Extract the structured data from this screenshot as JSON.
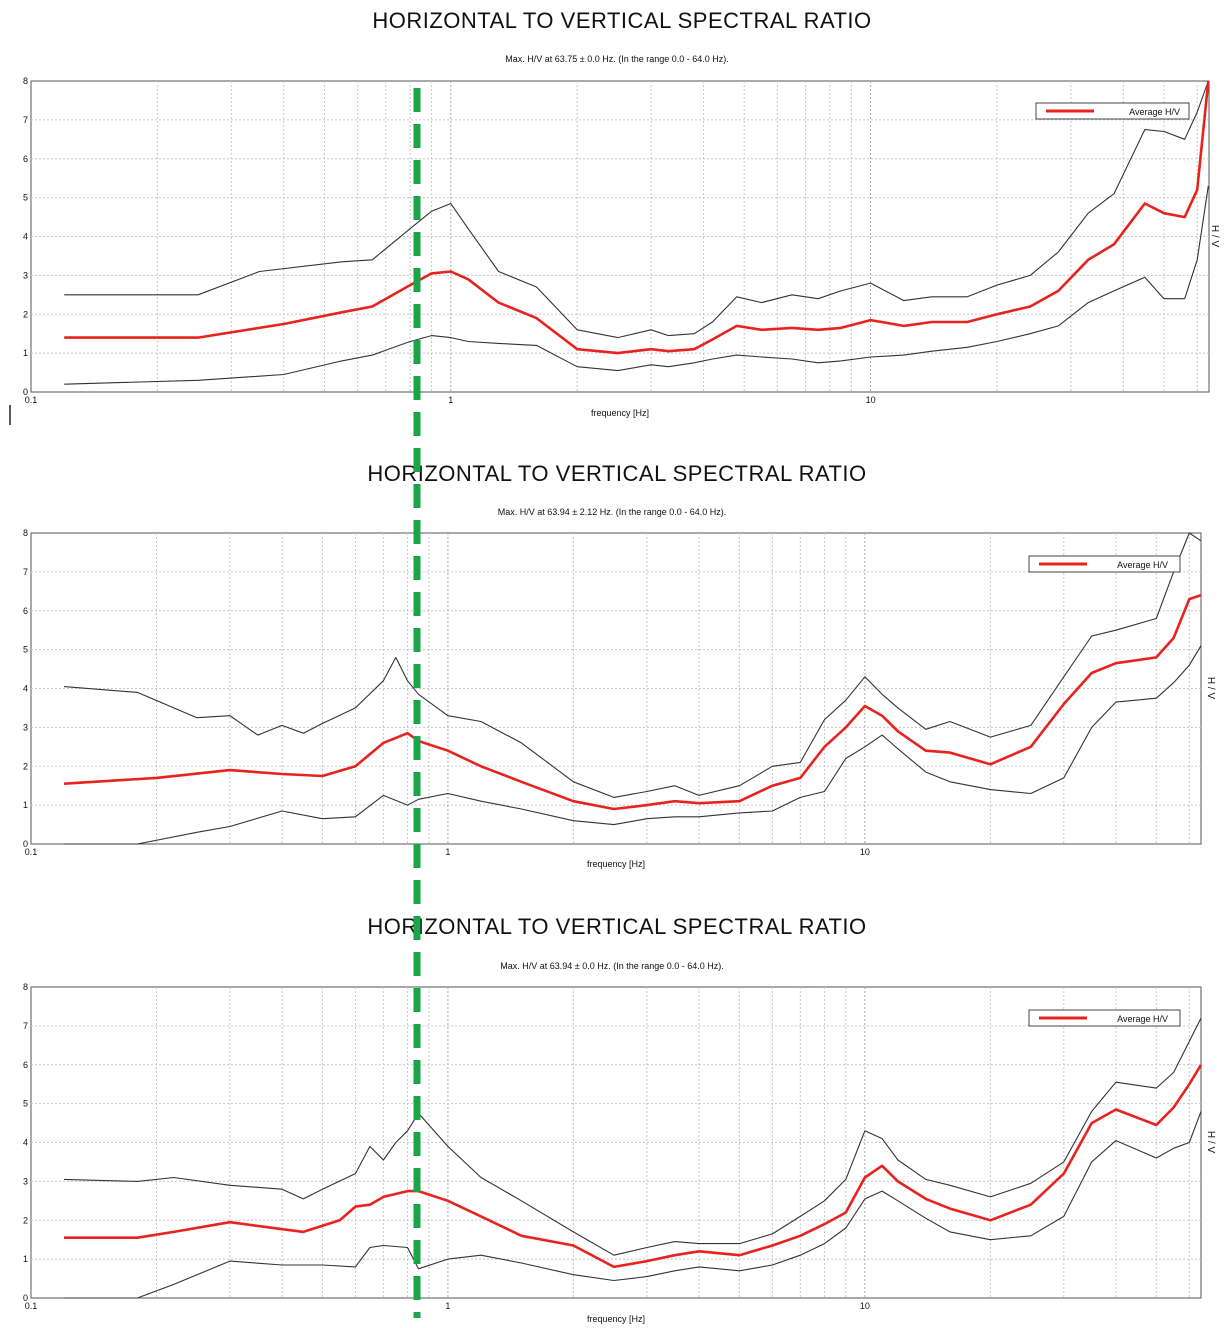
{
  "chart_data": [
    {
      "type": "line",
      "title": "HORIZONTAL TO VERTICAL SPECTRAL RATIO",
      "subtitle": "Max. H/V at 63.75 ± 0.0 Hz. (In the range 0.0 - 64.0 Hz).",
      "xlabel": "frequency [Hz]",
      "ylabel": "H / V",
      "xscale": "log",
      "xlim": [
        0.1,
        64
      ],
      "ylim": [
        0,
        8
      ],
      "xticks": [
        "0.1",
        "1",
        "10"
      ],
      "yticks": [
        "0",
        "1",
        "2",
        "3",
        "4",
        "5",
        "6",
        "7",
        "8"
      ],
      "grid": true,
      "legend": {
        "position": "top-right",
        "entries": [
          "Average H/V"
        ]
      },
      "series": [
        {
          "name": "Average H/V",
          "color": "#e8231e",
          "x": [
            0.12,
            0.25,
            0.4,
            0.55,
            0.65,
            0.8,
            0.9,
            1.0,
            1.1,
            1.3,
            1.6,
            2.0,
            2.5,
            3.0,
            3.3,
            3.8,
            4.2,
            4.8,
            5.5,
            6.5,
            7.5,
            8.5,
            10,
            12,
            14,
            17,
            20,
            24,
            28,
            33,
            38,
            45,
            50,
            56,
            60,
            63.75
          ],
          "y": [
            1.4,
            1.4,
            1.75,
            2.05,
            2.2,
            2.75,
            3.05,
            3.1,
            2.9,
            2.3,
            1.9,
            1.1,
            1.0,
            1.1,
            1.05,
            1.1,
            1.35,
            1.7,
            1.6,
            1.65,
            1.6,
            1.65,
            1.85,
            1.7,
            1.8,
            1.8,
            2.0,
            2.2,
            2.6,
            3.4,
            3.8,
            4.85,
            4.6,
            4.5,
            5.2,
            8.0
          ]
        },
        {
          "name": "",
          "color": "#333333",
          "x": [
            0.12,
            0.25,
            0.35,
            0.55,
            0.65,
            0.8,
            0.9,
            1.0,
            1.1,
            1.3,
            1.6,
            2.0,
            2.5,
            3.0,
            3.3,
            3.8,
            4.2,
            4.8,
            5.5,
            6.5,
            7.5,
            8.5,
            10,
            12,
            14,
            17,
            20,
            24,
            28,
            33,
            38,
            45,
            50,
            56,
            60,
            63.75
          ],
          "y": [
            2.5,
            2.5,
            3.1,
            3.35,
            3.4,
            4.2,
            4.65,
            4.85,
            4.2,
            3.1,
            2.7,
            1.6,
            1.4,
            1.6,
            1.45,
            1.5,
            1.8,
            2.45,
            2.3,
            2.5,
            2.4,
            2.6,
            2.8,
            2.35,
            2.45,
            2.45,
            2.75,
            3.0,
            3.6,
            4.6,
            5.1,
            6.75,
            6.7,
            6.5,
            7.2,
            8.0
          ]
        },
        {
          "name": "",
          "color": "#333333",
          "x": [
            0.12,
            0.25,
            0.4,
            0.55,
            0.65,
            0.8,
            0.9,
            1.0,
            1.1,
            1.3,
            1.6,
            2.0,
            2.5,
            3.0,
            3.3,
            3.8,
            4.2,
            4.8,
            5.5,
            6.5,
            7.5,
            8.5,
            10,
            12,
            14,
            17,
            20,
            24,
            28,
            33,
            38,
            45,
            50,
            56,
            60,
            63.75
          ],
          "y": [
            0.2,
            0.3,
            0.45,
            0.8,
            0.95,
            1.3,
            1.45,
            1.4,
            1.3,
            1.25,
            1.2,
            0.65,
            0.55,
            0.7,
            0.65,
            0.75,
            0.85,
            0.95,
            0.9,
            0.85,
            0.75,
            0.8,
            0.9,
            0.95,
            1.05,
            1.15,
            1.3,
            1.5,
            1.7,
            2.3,
            2.6,
            2.95,
            2.4,
            2.4,
            3.4,
            5.3
          ]
        }
      ]
    },
    {
      "type": "line",
      "title": "HORIZONTAL TO VERTICAL SPECTRAL RATIO",
      "subtitle": "Max. H/V at 63.94 ± 2.12 Hz. (In the range 0.0 - 64.0 Hz).",
      "xlabel": "frequency [Hz]",
      "ylabel": "H / V",
      "xscale": "log",
      "xlim": [
        0.1,
        64
      ],
      "ylim": [
        0,
        8
      ],
      "xticks": [
        "0.1",
        "1",
        "10"
      ],
      "yticks": [
        "0",
        "1",
        "2",
        "3",
        "4",
        "5",
        "6",
        "7",
        "8"
      ],
      "grid": true,
      "legend": {
        "position": "top-right",
        "entries": [
          "Average H/V"
        ]
      },
      "series": [
        {
          "name": "Average H/V",
          "color": "#e8231e",
          "x": [
            0.12,
            0.2,
            0.3,
            0.4,
            0.5,
            0.6,
            0.7,
            0.8,
            0.85,
            1.0,
            1.2,
            1.5,
            2.0,
            2.5,
            3.0,
            3.5,
            4.0,
            5.0,
            6.0,
            7.0,
            8.0,
            9.0,
            10.0,
            11.0,
            12.0,
            14.0,
            16.0,
            20.0,
            25.0,
            30.0,
            35.0,
            40.0,
            50.0,
            55.0,
            60.0,
            64.0
          ],
          "y": [
            1.55,
            1.7,
            1.9,
            1.8,
            1.75,
            2.0,
            2.6,
            2.85,
            2.65,
            2.4,
            2.0,
            1.6,
            1.1,
            0.9,
            1.0,
            1.1,
            1.05,
            1.1,
            1.5,
            1.7,
            2.5,
            3.0,
            3.55,
            3.3,
            2.9,
            2.4,
            2.35,
            2.05,
            2.5,
            3.6,
            4.4,
            4.65,
            4.8,
            5.3,
            6.3,
            6.4
          ]
        },
        {
          "name": "",
          "color": "#333333",
          "x": [
            0.12,
            0.18,
            0.25,
            0.3,
            0.35,
            0.4,
            0.45,
            0.5,
            0.6,
            0.7,
            0.75,
            0.8,
            0.85,
            1.0,
            1.2,
            1.5,
            2.0,
            2.5,
            3.0,
            3.5,
            4.0,
            5.0,
            6.0,
            7.0,
            8.0,
            9.0,
            10.0,
            11.0,
            12.0,
            14.0,
            16.0,
            20.0,
            25.0,
            30.0,
            35.0,
            40.0,
            50.0,
            55.0,
            60.0,
            64.0
          ],
          "y": [
            4.05,
            3.9,
            3.25,
            3.3,
            2.8,
            3.05,
            2.85,
            3.1,
            3.5,
            4.2,
            4.8,
            4.2,
            3.85,
            3.3,
            3.15,
            2.6,
            1.6,
            1.2,
            1.35,
            1.5,
            1.25,
            1.5,
            2.0,
            2.1,
            3.2,
            3.7,
            4.3,
            3.85,
            3.5,
            2.95,
            3.15,
            2.75,
            3.05,
            4.3,
            5.35,
            5.5,
            5.8,
            7.0,
            8.0,
            7.8
          ]
        },
        {
          "name": "",
          "color": "#333333",
          "x": [
            0.12,
            0.18,
            0.25,
            0.3,
            0.4,
            0.5,
            0.6,
            0.7,
            0.8,
            0.85,
            1.0,
            1.2,
            1.5,
            2.0,
            2.5,
            3.0,
            3.5,
            4.0,
            5.0,
            6.0,
            7.0,
            8.0,
            9.0,
            10.0,
            11.0,
            12.0,
            14.0,
            16.0,
            20.0,
            25.0,
            30.0,
            35.0,
            40.0,
            50.0,
            55.0,
            60.0,
            64.0
          ],
          "y": [
            0.0,
            0.0,
            0.3,
            0.45,
            0.85,
            0.65,
            0.7,
            1.25,
            1.0,
            1.15,
            1.3,
            1.1,
            0.9,
            0.6,
            0.5,
            0.65,
            0.7,
            0.7,
            0.8,
            0.85,
            1.2,
            1.35,
            2.2,
            2.5,
            2.8,
            2.45,
            1.85,
            1.6,
            1.4,
            1.3,
            1.7,
            3.0,
            3.65,
            3.75,
            4.15,
            4.6,
            5.1
          ]
        }
      ]
    },
    {
      "type": "line",
      "title": "HORIZONTAL TO VERTICAL SPECTRAL RATIO",
      "subtitle": "Max. H/V at 63.94 ± 0.0 Hz. (In the range 0.0 - 64.0 Hz).",
      "xlabel": "frequency [Hz]",
      "ylabel": "H / V",
      "xscale": "log",
      "xlim": [
        0.1,
        64
      ],
      "ylim": [
        0,
        8
      ],
      "xticks": [
        "0.1",
        "1",
        "10"
      ],
      "yticks": [
        "0",
        "1",
        "2",
        "3",
        "4",
        "5",
        "6",
        "7",
        "8"
      ],
      "grid": true,
      "legend": {
        "position": "top-right",
        "entries": [
          "Average H/V"
        ]
      },
      "series": [
        {
          "name": "Average H/V",
          "color": "#e8231e",
          "x": [
            0.12,
            0.18,
            0.22,
            0.3,
            0.45,
            0.55,
            0.6,
            0.65,
            0.7,
            0.8,
            0.85,
            1.0,
            1.2,
            1.5,
            2.0,
            2.5,
            3.0,
            3.5,
            4.0,
            5.0,
            6.0,
            7.0,
            8.0,
            9.0,
            10.0,
            11.0,
            12.0,
            14.0,
            16.0,
            20.0,
            25.0,
            30.0,
            35.0,
            40.0,
            50.0,
            55.0,
            60.0,
            64.0
          ],
          "y": [
            1.55,
            1.55,
            1.7,
            1.95,
            1.7,
            2.0,
            2.35,
            2.4,
            2.6,
            2.75,
            2.75,
            2.5,
            2.1,
            1.6,
            1.35,
            0.8,
            0.95,
            1.1,
            1.2,
            1.1,
            1.35,
            1.6,
            1.9,
            2.2,
            3.1,
            3.4,
            3.0,
            2.55,
            2.3,
            2.0,
            2.4,
            3.2,
            4.5,
            4.85,
            4.45,
            4.9,
            5.5,
            6.0
          ]
        },
        {
          "name": "",
          "color": "#333333",
          "x": [
            0.12,
            0.18,
            0.22,
            0.3,
            0.4,
            0.45,
            0.5,
            0.6,
            0.65,
            0.7,
            0.75,
            0.8,
            0.85,
            1.0,
            1.2,
            1.5,
            2.0,
            2.5,
            3.0,
            3.5,
            4.0,
            5.0,
            6.0,
            7.0,
            8.0,
            9.0,
            10.0,
            11.0,
            12.0,
            14.0,
            16.0,
            20.0,
            25.0,
            30.0,
            35.0,
            40.0,
            50.0,
            55.0,
            60.0,
            64.0
          ],
          "y": [
            3.05,
            3.0,
            3.1,
            2.9,
            2.8,
            2.55,
            2.8,
            3.2,
            3.9,
            3.55,
            4.0,
            4.3,
            4.75,
            3.9,
            3.1,
            2.5,
            1.7,
            1.1,
            1.3,
            1.45,
            1.4,
            1.4,
            1.65,
            2.1,
            2.5,
            3.05,
            4.3,
            4.1,
            3.55,
            3.05,
            2.9,
            2.6,
            2.95,
            3.5,
            4.8,
            5.55,
            5.4,
            5.8,
            6.6,
            7.2
          ]
        },
        {
          "name": "",
          "color": "#333333",
          "x": [
            0.12,
            0.18,
            0.22,
            0.3,
            0.4,
            0.5,
            0.6,
            0.65,
            0.7,
            0.8,
            0.85,
            1.0,
            1.2,
            1.5,
            2.0,
            2.5,
            3.0,
            3.5,
            4.0,
            5.0,
            6.0,
            7.0,
            8.0,
            9.0,
            10.0,
            11.0,
            12.0,
            14.0,
            16.0,
            20.0,
            25.0,
            30.0,
            35.0,
            40.0,
            50.0,
            55.0,
            60.0,
            64.0
          ],
          "y": [
            0.0,
            0.0,
            0.35,
            0.95,
            0.85,
            0.85,
            0.8,
            1.3,
            1.35,
            1.3,
            0.75,
            1.0,
            1.1,
            0.9,
            0.6,
            0.45,
            0.55,
            0.7,
            0.8,
            0.7,
            0.85,
            1.1,
            1.4,
            1.8,
            2.55,
            2.75,
            2.5,
            2.05,
            1.7,
            1.5,
            1.6,
            2.1,
            3.5,
            4.05,
            3.6,
            3.85,
            4.0,
            4.8
          ]
        }
      ]
    }
  ],
  "overlay": {
    "color": "#19a64a"
  }
}
